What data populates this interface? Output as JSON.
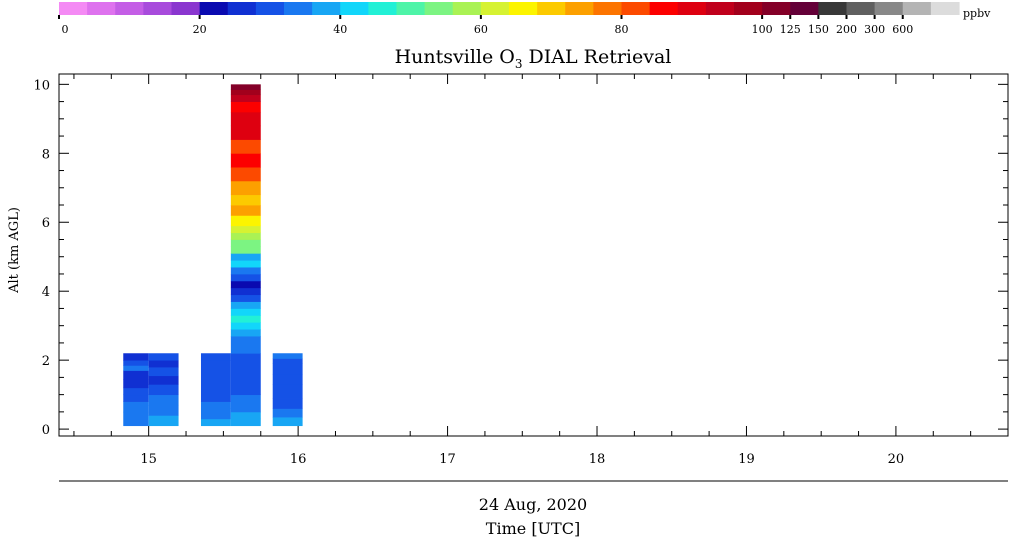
{
  "chart_data": {
    "type": "heatmap",
    "title": "Huntsville O",
    "title_subscript": "3",
    "title_suffix": " DIAL Retrieval",
    "ylabel": "Alt (km AGL)",
    "xlabel_date": "24 Aug, 2020",
    "xlabel": "Time [UTC]",
    "xlim": [
      14.4,
      20.75
    ],
    "ylim": [
      -0.2,
      10.3
    ],
    "x_ticks": [
      15,
      16,
      17,
      18,
      19,
      20
    ],
    "y_ticks": [
      0,
      2,
      4,
      6,
      8,
      10
    ],
    "colorbar": {
      "unit": "ppbv",
      "tick_labels": [
        "0",
        "20",
        "40",
        "60",
        "80",
        "100",
        "125",
        "150",
        "200",
        "300",
        "600"
      ],
      "colors": [
        "#f48af4",
        "#de72ee",
        "#c45ee6",
        "#a84bdc",
        "#8a36cf",
        "#0a0ab0",
        "#1030d2",
        "#1552e6",
        "#1a78f0",
        "#18a6f4",
        "#12d6fa",
        "#22f0d6",
        "#4ef4a8",
        "#7cf482",
        "#aaf254",
        "#d6f232",
        "#fcf400",
        "#fcca00",
        "#fca000",
        "#fc7400",
        "#fc4a00",
        "#fc0000",
        "#de0010",
        "#c0001c",
        "#a2001c",
        "#840028",
        "#640038",
        "#383838",
        "#606060",
        "#888888",
        "#b4b4b4",
        "#dcdcdc"
      ]
    },
    "profiles": [
      {
        "time_range": [
          14.83,
          15.0
        ],
        "layers": [
          {
            "alt_range": [
              0.1,
              0.5
            ],
            "ppbv": 35
          },
          {
            "alt_range": [
              0.5,
              0.8
            ],
            "ppbv": 33
          },
          {
            "alt_range": [
              0.8,
              1.0
            ],
            "ppbv": 30
          },
          {
            "alt_range": [
              1.0,
              1.2
            ],
            "ppbv": 28
          },
          {
            "alt_range": [
              1.2,
              1.45
            ],
            "ppbv": 26
          },
          {
            "alt_range": [
              1.45,
              1.7
            ],
            "ppbv": 25
          },
          {
            "alt_range": [
              1.7,
              1.85
            ],
            "ppbv": 33
          },
          {
            "alt_range": [
              1.85,
              2.0
            ],
            "ppbv": 30
          },
          {
            "alt_range": [
              2.0,
              2.2
            ],
            "ppbv": 24
          }
        ]
      },
      {
        "time_range": [
          15.0,
          15.2
        ],
        "layers": [
          {
            "alt_range": [
              0.1,
              0.4
            ],
            "ppbv": 38
          },
          {
            "alt_range": [
              0.4,
              0.7
            ],
            "ppbv": 34
          },
          {
            "alt_range": [
              0.7,
              1.0
            ],
            "ppbv": 32
          },
          {
            "alt_range": [
              1.0,
              1.3
            ],
            "ppbv": 30
          },
          {
            "alt_range": [
              1.3,
              1.55
            ],
            "ppbv": 24
          },
          {
            "alt_range": [
              1.55,
              1.8
            ],
            "ppbv": 29
          },
          {
            "alt_range": [
              1.8,
              2.0
            ],
            "ppbv": 26
          },
          {
            "alt_range": [
              2.0,
              2.2
            ],
            "ppbv": 30
          }
        ]
      },
      {
        "time_range": [
          15.35,
          15.55
        ],
        "layers": [
          {
            "alt_range": [
              0.1,
              0.3
            ],
            "ppbv": 37
          },
          {
            "alt_range": [
              0.3,
              0.6
            ],
            "ppbv": 33
          },
          {
            "alt_range": [
              0.6,
              0.8
            ],
            "ppbv": 35
          },
          {
            "alt_range": [
              0.8,
              2.0
            ],
            "ppbv": 28
          },
          {
            "alt_range": [
              2.0,
              2.2
            ],
            "ppbv": 31
          }
        ]
      },
      {
        "time_range": [
          15.55,
          15.75
        ],
        "layers": [
          {
            "alt_range": [
              0.1,
              0.3
            ],
            "ppbv": 38
          },
          {
            "alt_range": [
              0.3,
              0.5
            ],
            "ppbv": 36
          },
          {
            "alt_range": [
              0.5,
              1.0
            ],
            "ppbv": 33
          },
          {
            "alt_range": [
              1.0,
              2.2
            ],
            "ppbv": 28
          },
          {
            "alt_range": [
              2.2,
              2.7
            ],
            "ppbv": 33
          },
          {
            "alt_range": [
              2.7,
              2.9
            ],
            "ppbv": 37
          },
          {
            "alt_range": [
              2.9,
              3.1
            ],
            "ppbv": 43
          },
          {
            "alt_range": [
              3.1,
              3.3
            ],
            "ppbv": 46
          },
          {
            "alt_range": [
              3.3,
              3.5
            ],
            "ppbv": 41
          },
          {
            "alt_range": [
              3.5,
              3.7
            ],
            "ppbv": 38
          },
          {
            "alt_range": [
              3.7,
              3.9
            ],
            "ppbv": 30
          },
          {
            "alt_range": [
              3.9,
              4.1
            ],
            "ppbv": 24
          },
          {
            "alt_range": [
              4.1,
              4.3
            ],
            "ppbv": 21
          },
          {
            "alt_range": [
              4.3,
              4.5
            ],
            "ppbv": 28
          },
          {
            "alt_range": [
              4.5,
              4.7
            ],
            "ppbv": 35
          },
          {
            "alt_range": [
              4.7,
              4.9
            ],
            "ppbv": 42
          },
          {
            "alt_range": [
              4.9,
              5.1
            ],
            "ppbv": 38
          },
          {
            "alt_range": [
              5.1,
              5.3
            ],
            "ppbv": 52
          },
          {
            "alt_range": [
              5.3,
              5.5
            ],
            "ppbv": 55
          },
          {
            "alt_range": [
              5.5,
              5.7
            ],
            "ppbv": 58
          },
          {
            "alt_range": [
              5.7,
              5.9
            ],
            "ppbv": 62
          },
          {
            "alt_range": [
              5.9,
              6.2
            ],
            "ppbv": 66
          },
          {
            "alt_range": [
              6.2,
              6.5
            ],
            "ppbv": 72
          },
          {
            "alt_range": [
              6.5,
              6.8
            ],
            "ppbv": 68
          },
          {
            "alt_range": [
              6.8,
              7.2
            ],
            "ppbv": 74
          },
          {
            "alt_range": [
              7.2,
              7.6
            ],
            "ppbv": 80
          },
          {
            "alt_range": [
              7.6,
              8.0
            ],
            "ppbv": 85
          },
          {
            "alt_range": [
              8.0,
              8.4
            ],
            "ppbv": 80
          },
          {
            "alt_range": [
              8.4,
              8.8
            ],
            "ppbv": 88
          },
          {
            "alt_range": [
              8.8,
              9.2
            ],
            "ppbv": 91
          },
          {
            "alt_range": [
              9.2,
              9.5
            ],
            "ppbv": 84
          },
          {
            "alt_range": [
              9.5,
              9.7
            ],
            "ppbv": 95
          },
          {
            "alt_range": [
              9.7,
              9.85
            ],
            "ppbv": 99
          },
          {
            "alt_range": [
              9.85,
              10.0
            ],
            "ppbv": 110
          }
        ]
      },
      {
        "time_range": [
          15.83,
          16.03
        ],
        "layers": [
          {
            "alt_range": [
              0.1,
              0.35
            ],
            "ppbv": 37
          },
          {
            "alt_range": [
              0.35,
              0.6
            ],
            "ppbv": 34
          },
          {
            "alt_range": [
              0.6,
              0.9
            ],
            "ppbv": 31
          },
          {
            "alt_range": [
              0.9,
              1.3
            ],
            "ppbv": 29
          },
          {
            "alt_range": [
              1.3,
              1.6
            ],
            "ppbv": 31
          },
          {
            "alt_range": [
              1.6,
              1.9
            ],
            "ppbv": 29
          },
          {
            "alt_range": [
              1.9,
              2.05
            ],
            "ppbv": 31
          },
          {
            "alt_range": [
              2.05,
              2.2
            ],
            "ppbv": 35
          }
        ]
      }
    ]
  }
}
